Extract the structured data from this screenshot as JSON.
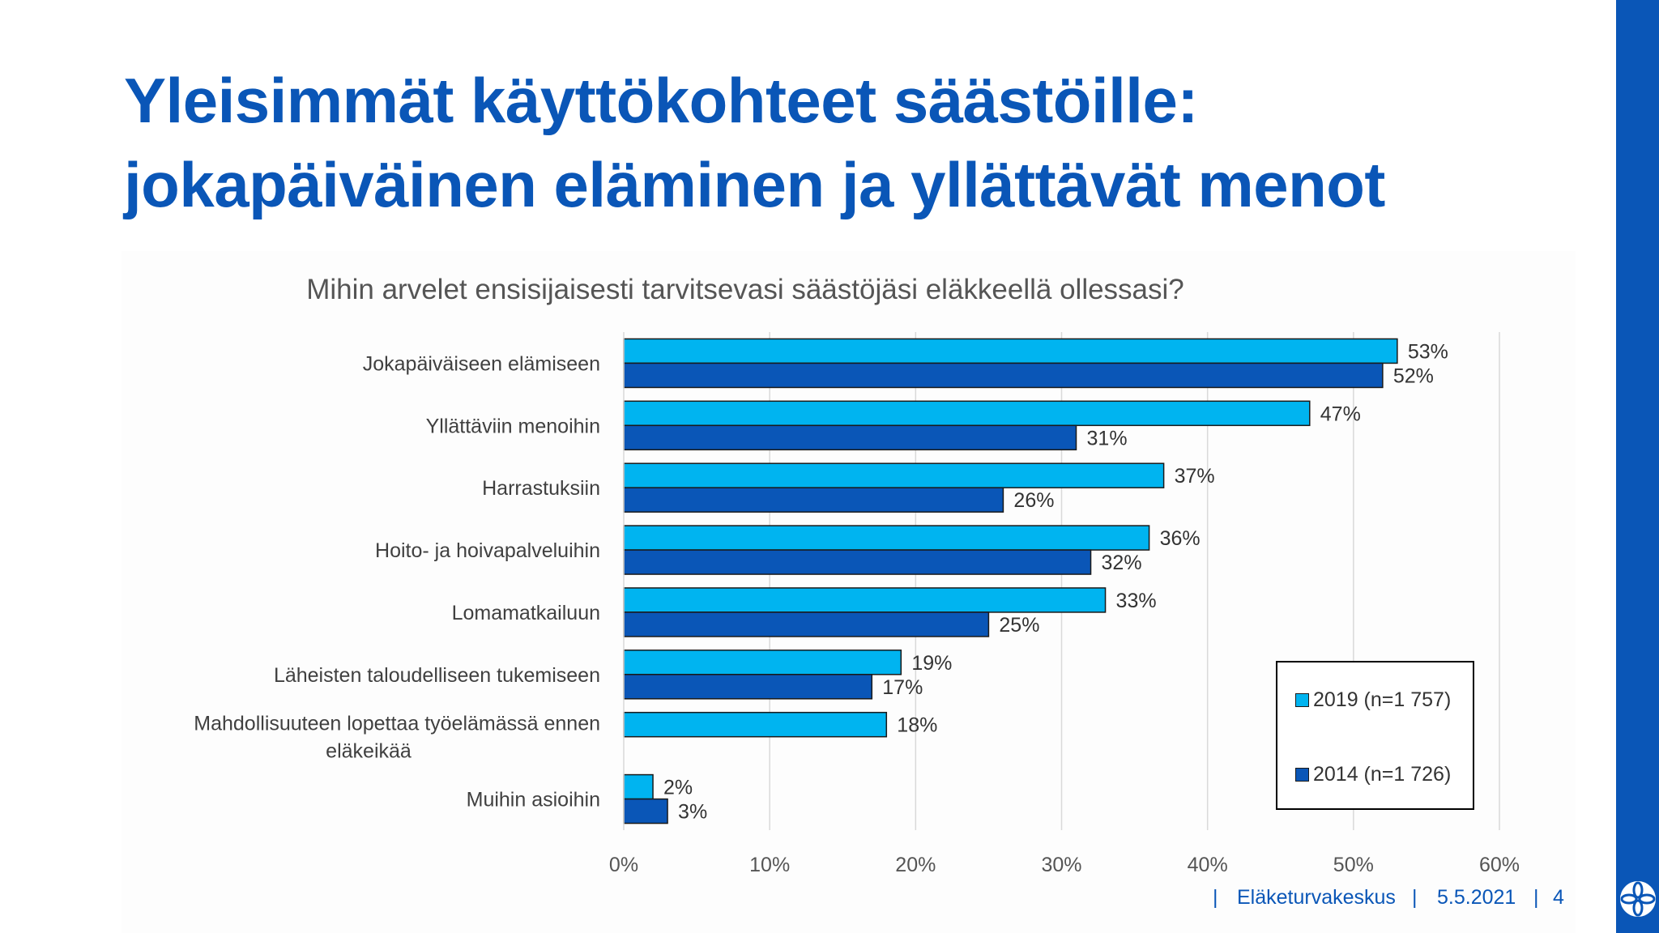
{
  "slide": {
    "title_line1": "Yleisimmät käyttökohteet säästöille:",
    "title_line2": "jokapäiväinen eläminen ja yllättävät menot",
    "footer_org": "Eläketurvakeskus",
    "footer_date": "5.5.2021",
    "footer_page": "4",
    "footer_sep": "|",
    "accent_color": "#0a56b7"
  },
  "chart_data": {
    "type": "bar",
    "orientation": "horizontal",
    "title": "Mihin arvelet ensisijaisesti tarvitsevasi säästöjäsi eläkkeellä ollessasi?",
    "categories": [
      "Jokapäiväiseen elämiseen",
      "Yllättäviin menoihin",
      "Harrastuksiin",
      "Hoito- ja hoivapalveluihin",
      "Lomamatkailuun",
      "Läheisten taloudelliseen tukemiseen",
      "Mahdollisuuteen lopettaa työelämässä ennen eläkeikää",
      "Muihin asioihin"
    ],
    "series": [
      {
        "name": "2019 (n=1 757)",
        "color": "#00b4f0",
        "values": [
          53,
          47,
          37,
          36,
          33,
          19,
          18,
          2
        ],
        "labels": [
          "53%",
          "47%",
          "37%",
          "36%",
          "33%",
          "19%",
          "18%",
          "2%"
        ]
      },
      {
        "name": "2014 (n=1 726)",
        "color": "#0a56b7",
        "values": [
          52,
          31,
          26,
          32,
          25,
          17,
          null,
          3
        ],
        "labels": [
          "52%",
          "31%",
          "26%",
          "32%",
          "25%",
          "17%",
          "",
          "3%"
        ]
      }
    ],
    "xlim": [
      0,
      60
    ],
    "xticks": [
      "0%",
      "10%",
      "20%",
      "30%",
      "40%",
      "50%",
      "60%"
    ],
    "grid": true,
    "legend": "bottom-right"
  }
}
